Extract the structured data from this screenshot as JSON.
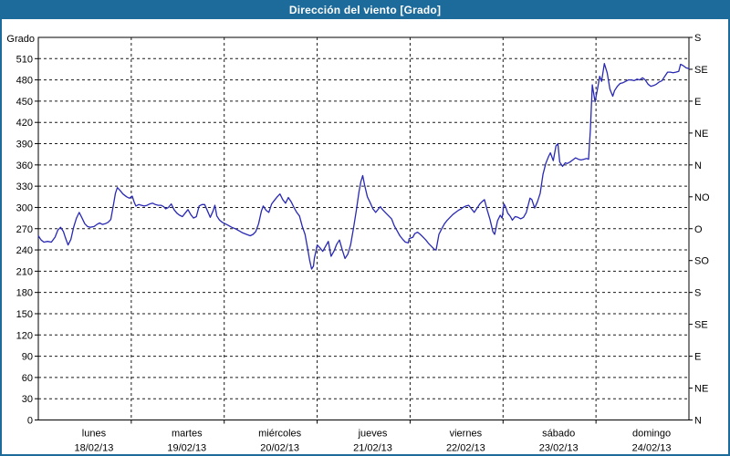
{
  "window": {
    "title": "Dirección del viento [Grado]"
  },
  "colors": {
    "title_bar": "#1d6b9b",
    "title_text": "#ffffff",
    "line": "#2929b4",
    "grid": "#1a1a1a",
    "frame": "#000000",
    "label_text": "#000000",
    "background": "#ffffff"
  },
  "chart_data": {
    "type": "line",
    "title": "Dirección del viento [Grado]",
    "ylabel": "Grado",
    "ylim": [
      0,
      540
    ],
    "xlim_days": [
      0,
      7
    ],
    "grid": "dashed",
    "y_ticks_left": [
      0,
      30,
      60,
      90,
      120,
      150,
      180,
      210,
      240,
      270,
      300,
      330,
      360,
      390,
      420,
      450,
      480,
      510
    ],
    "y_ticks_right": [
      {
        "value": 540,
        "label": "S"
      },
      {
        "value": 495,
        "label": "SE"
      },
      {
        "value": 450,
        "label": "E"
      },
      {
        "value": 405,
        "label": "NE"
      },
      {
        "value": 360,
        "label": "N"
      },
      {
        "value": 315,
        "label": "NO"
      },
      {
        "value": 270,
        "label": "O"
      },
      {
        "value": 225,
        "label": "SO"
      },
      {
        "value": 180,
        "label": "S"
      },
      {
        "value": 135,
        "label": "SE"
      },
      {
        "value": 90,
        "label": "E"
      },
      {
        "value": 45,
        "label": "NE"
      },
      {
        "value": 0,
        "label": "N"
      }
    ],
    "days": [
      {
        "name": "lunes",
        "date": "18/02/13"
      },
      {
        "name": "martes",
        "date": "19/02/13"
      },
      {
        "name": "miércoles",
        "date": "20/02/13"
      },
      {
        "name": "jueves",
        "date": "21/02/13"
      },
      {
        "name": "viernes",
        "date": "22/02/13"
      },
      {
        "name": "sábado",
        "date": "23/02/13"
      },
      {
        "name": "domingo",
        "date": "24/02/13"
      }
    ],
    "series": [
      {
        "name": "Dirección del viento",
        "points": [
          [
            0,
            260
          ],
          [
            0.03,
            254
          ],
          [
            0.06,
            251
          ],
          [
            0.1,
            252
          ],
          [
            0.14,
            251
          ],
          [
            0.18,
            258
          ],
          [
            0.21,
            268
          ],
          [
            0.24,
            272
          ],
          [
            0.27,
            266
          ],
          [
            0.29,
            258
          ],
          [
            0.32,
            247
          ],
          [
            0.35,
            255
          ],
          [
            0.38,
            272
          ],
          [
            0.41,
            285
          ],
          [
            0.44,
            293
          ],
          [
            0.47,
            285
          ],
          [
            0.5,
            277
          ],
          [
            0.53,
            273
          ],
          [
            0.56,
            272
          ],
          [
            0.6,
            273
          ],
          [
            0.63,
            276
          ],
          [
            0.66,
            278
          ],
          [
            0.69,
            276
          ],
          [
            0.72,
            277
          ],
          [
            0.75,
            279
          ],
          [
            0.78,
            283
          ],
          [
            0.81,
            305
          ],
          [
            0.83,
            320
          ],
          [
            0.85,
            328
          ],
          [
            0.88,
            324
          ],
          [
            0.91,
            319
          ],
          [
            0.95,
            315
          ],
          [
            0.98,
            313
          ],
          [
            1.01,
            316
          ],
          [
            1.03,
            308
          ],
          [
            1.05,
            302
          ],
          [
            1.08,
            304
          ],
          [
            1.11,
            303
          ],
          [
            1.14,
            302
          ],
          [
            1.17,
            303
          ],
          [
            1.2,
            305
          ],
          [
            1.23,
            306
          ],
          [
            1.26,
            304
          ],
          [
            1.29,
            303
          ],
          [
            1.32,
            303
          ],
          [
            1.35,
            301
          ],
          [
            1.37,
            298
          ],
          [
            1.4,
            300
          ],
          [
            1.43,
            305
          ],
          [
            1.46,
            297
          ],
          [
            1.49,
            292
          ],
          [
            1.52,
            289
          ],
          [
            1.55,
            287
          ],
          [
            1.58,
            292
          ],
          [
            1.61,
            297
          ],
          [
            1.64,
            290
          ],
          [
            1.67,
            285
          ],
          [
            1.7,
            287
          ],
          [
            1.73,
            302
          ],
          [
            1.76,
            304
          ],
          [
            1.79,
            304
          ],
          [
            1.82,
            295
          ],
          [
            1.85,
            286
          ],
          [
            1.88,
            295
          ],
          [
            1.9,
            303
          ],
          [
            1.92,
            288
          ],
          [
            1.95,
            282
          ],
          [
            1.98,
            279
          ],
          [
            2.01,
            277
          ],
          [
            2.04,
            275
          ],
          [
            2.08,
            272
          ],
          [
            2.12,
            270
          ],
          [
            2.16,
            267
          ],
          [
            2.2,
            264
          ],
          [
            2.24,
            262
          ],
          [
            2.28,
            260
          ],
          [
            2.31,
            262
          ],
          [
            2.34,
            266
          ],
          [
            2.37,
            277
          ],
          [
            2.4,
            295
          ],
          [
            2.42,
            302
          ],
          [
            2.45,
            296
          ],
          [
            2.48,
            293
          ],
          [
            2.51,
            305
          ],
          [
            2.54,
            310
          ],
          [
            2.57,
            315
          ],
          [
            2.6,
            319
          ],
          [
            2.63,
            311
          ],
          [
            2.66,
            306
          ],
          [
            2.69,
            314
          ],
          [
            2.72,
            308
          ],
          [
            2.75,
            300
          ],
          [
            2.78,
            293
          ],
          [
            2.81,
            288
          ],
          [
            2.84,
            273
          ],
          [
            2.87,
            262
          ],
          [
            2.9,
            240
          ],
          [
            2.92,
            225
          ],
          [
            2.94,
            213
          ],
          [
            2.96,
            217
          ],
          [
            2.97,
            228
          ],
          [
            3.0,
            247
          ],
          [
            3.03,
            243
          ],
          [
            3.06,
            238
          ],
          [
            3.09,
            245
          ],
          [
            3.12,
            252
          ],
          [
            3.15,
            231
          ],
          [
            3.18,
            238
          ],
          [
            3.21,
            248
          ],
          [
            3.24,
            254
          ],
          [
            3.27,
            240
          ],
          [
            3.3,
            228
          ],
          [
            3.33,
            234
          ],
          [
            3.36,
            247
          ],
          [
            3.39,
            270
          ],
          [
            3.42,
            295
          ],
          [
            3.45,
            322
          ],
          [
            3.47,
            336
          ],
          [
            3.49,
            345
          ],
          [
            3.51,
            332
          ],
          [
            3.54,
            315
          ],
          [
            3.57,
            307
          ],
          [
            3.6,
            298
          ],
          [
            3.63,
            293
          ],
          [
            3.66,
            298
          ],
          [
            3.68,
            301
          ],
          [
            3.71,
            296
          ],
          [
            3.74,
            292
          ],
          [
            3.77,
            288
          ],
          [
            3.8,
            284
          ],
          [
            3.83,
            274
          ],
          [
            3.86,
            267
          ],
          [
            3.89,
            260
          ],
          [
            3.92,
            255
          ],
          [
            3.95,
            251
          ],
          [
            3.98,
            250
          ],
          [
            3.99,
            256
          ],
          [
            4.03,
            258
          ],
          [
            4.05,
            263
          ],
          [
            4.08,
            265
          ],
          [
            4.11,
            262
          ],
          [
            4.14,
            258
          ],
          [
            4.17,
            254
          ],
          [
            4.2,
            249
          ],
          [
            4.23,
            245
          ],
          [
            4.26,
            241
          ],
          [
            4.28,
            240
          ],
          [
            4.31,
            262
          ],
          [
            4.34,
            270
          ],
          [
            4.37,
            277
          ],
          [
            4.4,
            282
          ],
          [
            4.43,
            286
          ],
          [
            4.46,
            290
          ],
          [
            4.49,
            293
          ],
          [
            4.52,
            296
          ],
          [
            4.55,
            298
          ],
          [
            4.57,
            300
          ],
          [
            4.6,
            302
          ],
          [
            4.63,
            303
          ],
          [
            4.66,
            298
          ],
          [
            4.69,
            293
          ],
          [
            4.72,
            299
          ],
          [
            4.75,
            305
          ],
          [
            4.78,
            309
          ],
          [
            4.8,
            311
          ],
          [
            4.83,
            296
          ],
          [
            4.86,
            283
          ],
          [
            4.89,
            266
          ],
          [
            4.91,
            262
          ],
          [
            4.94,
            281
          ],
          [
            4.97,
            289
          ],
          [
            4.99,
            285
          ],
          [
            5.01,
            305
          ],
          [
            5.03,
            300
          ],
          [
            5.05,
            292
          ],
          [
            5.08,
            287
          ],
          [
            5.1,
            282
          ],
          [
            5.13,
            287
          ],
          [
            5.16,
            286
          ],
          [
            5.19,
            284
          ],
          [
            5.22,
            286
          ],
          [
            5.25,
            293
          ],
          [
            5.27,
            303
          ],
          [
            5.29,
            313
          ],
          [
            5.31,
            311
          ],
          [
            5.34,
            299
          ],
          [
            5.37,
            308
          ],
          [
            5.4,
            320
          ],
          [
            5.43,
            347
          ],
          [
            5.46,
            362
          ],
          [
            5.49,
            372
          ],
          [
            5.51,
            377
          ],
          [
            5.54,
            366
          ],
          [
            5.57,
            387
          ],
          [
            5.59,
            390
          ],
          [
            5.61,
            364
          ],
          [
            5.64,
            358
          ],
          [
            5.67,
            363
          ],
          [
            5.69,
            362
          ],
          [
            5.72,
            364
          ],
          [
            5.75,
            367
          ],
          [
            5.78,
            370
          ],
          [
            5.81,
            368
          ],
          [
            5.84,
            367
          ],
          [
            5.87,
            368
          ],
          [
            5.9,
            369
          ],
          [
            5.92,
            368
          ],
          [
            5.94,
            410
          ],
          [
            5.96,
            473
          ],
          [
            5.99,
            449
          ],
          [
            6.02,
            470
          ],
          [
            6.04,
            485
          ],
          [
            6.06,
            478
          ],
          [
            6.09,
            503
          ],
          [
            6.12,
            490
          ],
          [
            6.15,
            467
          ],
          [
            6.18,
            457
          ],
          [
            6.2,
            465
          ],
          [
            6.23,
            471
          ],
          [
            6.26,
            475
          ],
          [
            6.29,
            476
          ],
          [
            6.32,
            478
          ],
          [
            6.35,
            480
          ],
          [
            6.38,
            480
          ],
          [
            6.41,
            479
          ],
          [
            6.44,
            481
          ],
          [
            6.47,
            480
          ],
          [
            6.5,
            483
          ],
          [
            6.53,
            480
          ],
          [
            6.56,
            474
          ],
          [
            6.59,
            471
          ],
          [
            6.62,
            472
          ],
          [
            6.65,
            474
          ],
          [
            6.68,
            477
          ],
          [
            6.71,
            479
          ],
          [
            6.74,
            485
          ],
          [
            6.77,
            491
          ],
          [
            6.8,
            491
          ],
          [
            6.83,
            490
          ],
          [
            6.86,
            491
          ],
          [
            6.89,
            492
          ],
          [
            6.91,
            502
          ],
          [
            6.94,
            500
          ],
          [
            6.97,
            497
          ],
          [
            7.0,
            496
          ]
        ]
      }
    ]
  }
}
